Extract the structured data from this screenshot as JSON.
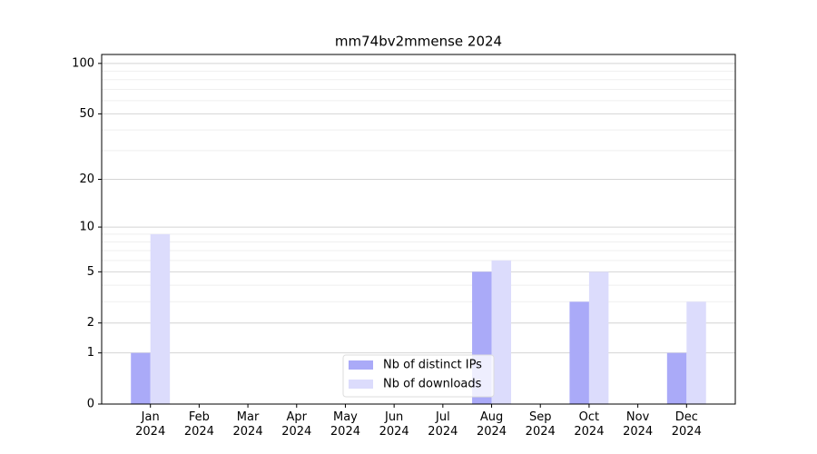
{
  "chart_data": {
    "type": "bar",
    "title": "mm74bv2mmense 2024",
    "categories": [
      "Jan 2024",
      "Feb 2024",
      "Mar 2024",
      "Apr 2024",
      "May 2024",
      "Jun 2024",
      "Jul 2024",
      "Aug 2024",
      "Sep 2024",
      "Oct 2024",
      "Nov 2024",
      "Dec 2024"
    ],
    "series": [
      {
        "name": "Nb of distinct IPs",
        "color": "#aaaaf8",
        "values": [
          1,
          0,
          0,
          0,
          0,
          0,
          0,
          5,
          0,
          3,
          0,
          1
        ]
      },
      {
        "name": "Nb of downloads",
        "color": "#dcdcfc",
        "values": [
          9,
          0,
          0,
          0,
          0,
          0,
          0,
          6,
          0,
          5,
          0,
          3
        ]
      }
    ],
    "y_scale": "log1p",
    "ylim": [
      0,
      113
    ],
    "yticks": [
      0,
      1,
      2,
      5,
      10,
      20,
      50,
      100
    ],
    "minor_yticks": [
      3,
      4,
      6,
      7,
      8,
      9,
      30,
      40,
      60,
      70,
      80,
      90
    ],
    "grid": true,
    "legend": "lower center"
  }
}
